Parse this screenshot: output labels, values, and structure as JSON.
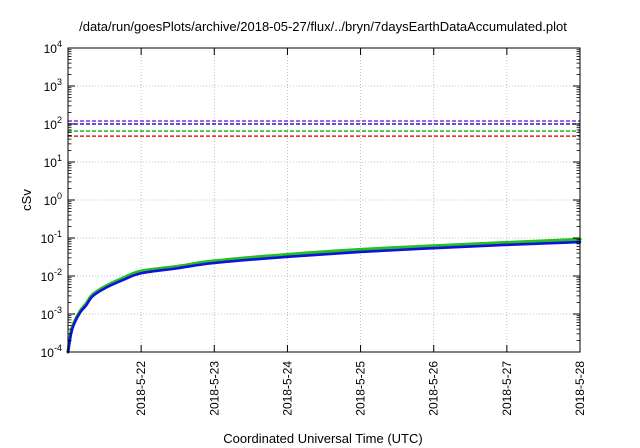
{
  "chart_data": {
    "type": "line",
    "title": "/data/run/goesPlots/archive/2018-05-27/flux/../bryn/7daysEarthDataAccumulated.plot",
    "xlabel": "Coordinated Universal Time (UTC)",
    "ylabel": "cSv",
    "y_scale": "log",
    "ylim": [
      0.0001,
      10000
    ],
    "xlim": [
      "2018-05-21",
      "2018-05-28"
    ],
    "grid": true,
    "legend": "none",
    "x_tick_labels": [
      "2018-5-22",
      "2018-5-23",
      "2018-5-24",
      "2018-5-25",
      "2018-5-26",
      "2018-5-27",
      "2018-5-28"
    ],
    "y_tick_labels": [
      {
        "base": "10",
        "exp": "-4"
      },
      {
        "base": "10",
        "exp": "-3"
      },
      {
        "base": "10",
        "exp": "-2"
      },
      {
        "base": "10",
        "exp": "-1"
      },
      {
        "base": "10",
        "exp": "0"
      },
      {
        "base": "10",
        "exp": "1"
      },
      {
        "base": "10",
        "exp": "2"
      },
      {
        "base": "10",
        "exp": "3"
      },
      {
        "base": "10",
        "exp": "4"
      }
    ],
    "reference_lines": [
      {
        "value": 120,
        "color": "#8a2be2"
      },
      {
        "value": 100,
        "color": "#2020c0"
      },
      {
        "value": 65,
        "color": "#22c022"
      },
      {
        "value": 48,
        "color": "#e02020"
      }
    ],
    "series": [
      {
        "color": "#22c022",
        "x": [
          "2018-05-21T00:00",
          "2018-05-21T01:00",
          "2018-05-21T02:00",
          "2018-05-21T04:00",
          "2018-05-21T06:00",
          "2018-05-21T08:00",
          "2018-05-21T12:00",
          "2018-05-21T18:00",
          "2018-05-22T00:00",
          "2018-05-22T12:00",
          "2018-05-23T00:00",
          "2018-05-24T00:00",
          "2018-05-25T00:00",
          "2018-05-26T00:00",
          "2018-05-27T00:00",
          "2018-05-28T00:00"
        ],
        "values": [
          0.0001,
          0.00035,
          0.0006,
          0.0012,
          0.0019,
          0.0032,
          0.0052,
          0.0088,
          0.0135,
          0.018,
          0.025,
          0.037,
          0.05,
          0.062,
          0.076,
          0.092
        ]
      },
      {
        "color": "#1010e0",
        "x": [
          "2018-05-21T00:00",
          "2018-05-21T01:00",
          "2018-05-21T02:00",
          "2018-05-21T04:00",
          "2018-05-21T06:00",
          "2018-05-21T08:00",
          "2018-05-21T12:00",
          "2018-05-21T18:00",
          "2018-05-22T00:00",
          "2018-05-22T12:00",
          "2018-05-23T00:00",
          "2018-05-24T00:00",
          "2018-05-25T00:00",
          "2018-05-26T00:00",
          "2018-05-27T00:00",
          "2018-05-28T00:00"
        ],
        "values": [
          0.0001,
          0.0003,
          0.00055,
          0.0011,
          0.0017,
          0.0029,
          0.0047,
          0.0078,
          0.0118,
          0.016,
          0.022,
          0.032,
          0.043,
          0.054,
          0.066,
          0.078
        ]
      }
    ],
    "colors": {
      "grid": "#b0b0b0",
      "frame": "#000000"
    }
  }
}
